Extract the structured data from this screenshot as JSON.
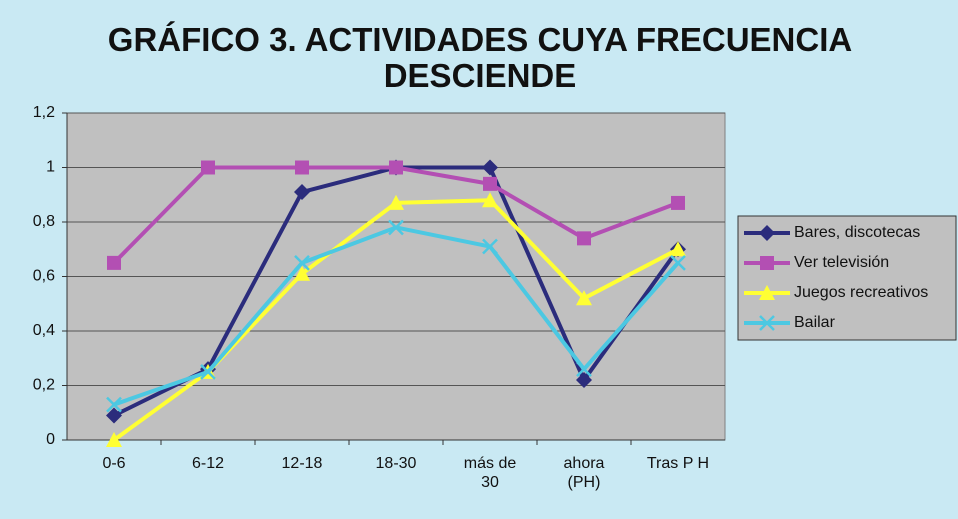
{
  "chart_data": {
    "type": "line",
    "title": "GRÁFICO 3. ACTIVIDADES CUYA FRECUENCIA DESCIENDE",
    "categories": [
      "0-6",
      "6-12",
      "12-18",
      "18-30",
      "más de 30",
      "ahora (PH)",
      "Tras P H"
    ],
    "series": [
      {
        "name": "Bares, discotecas",
        "color": "#2b2c7c",
        "marker": "diamond",
        "values": [
          0.09,
          0.26,
          0.91,
          1.0,
          1.0,
          0.22,
          0.7
        ]
      },
      {
        "name": "Ver televisión",
        "color": "#b34fb3",
        "marker": "square",
        "values": [
          0.65,
          1.0,
          1.0,
          1.0,
          0.94,
          0.74,
          0.87
        ]
      },
      {
        "name": "Juegos recreativos",
        "color": "#ffff33",
        "marker": "triangle",
        "values": [
          0.0,
          0.25,
          0.61,
          0.87,
          0.88,
          0.52,
          0.7
        ]
      },
      {
        "name": "Bailar",
        "color": "#4cc8e2",
        "marker": "x",
        "values": [
          0.13,
          0.25,
          0.65,
          0.78,
          0.71,
          0.26,
          0.65
        ]
      }
    ],
    "ylim": [
      0,
      1.2
    ],
    "yticks": [
      0,
      {
        "value": 0.2,
        "label": "0,2"
      },
      {
        "value": 0.4,
        "label": "0,4"
      },
      {
        "value": 0.6,
        "label": "0,6"
      },
      {
        "value": 0.8,
        "label": "0,8"
      },
      1,
      {
        "value": 1.2,
        "label": "1,2"
      }
    ],
    "grid": true,
    "legend": "right"
  }
}
